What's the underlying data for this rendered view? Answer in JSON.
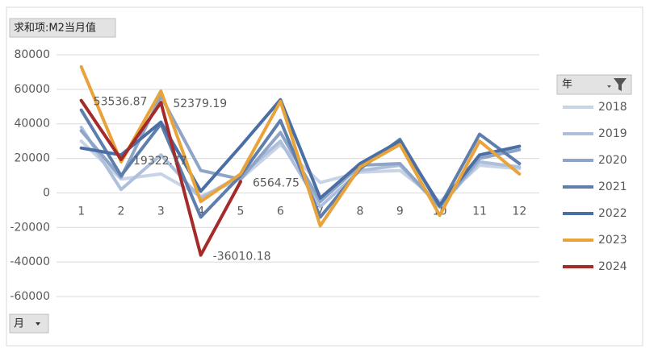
{
  "field_buttons": {
    "value_field": "求和项:M2当月值",
    "legend_field": "年",
    "axis_field": "月"
  },
  "chart_data": {
    "type": "line",
    "categories": [
      "1",
      "2",
      "3",
      "4",
      "5",
      "6",
      "7",
      "8",
      "9",
      "10",
      "11",
      "12"
    ],
    "ylim": [
      -60000,
      80000
    ],
    "yticks": [
      -60000,
      -40000,
      -20000,
      0,
      20000,
      40000,
      60000,
      80000
    ],
    "grid": true,
    "legend": "right",
    "series": [
      {
        "name": "2018",
        "color": "#c9d3e6",
        "values": [
          30000,
          8000,
          11000,
          -2000,
          8000,
          28000,
          6000,
          12000,
          13000,
          -5000,
          16000,
          14000
        ]
      },
      {
        "name": "2019",
        "color": "#aebfdc",
        "values": [
          38000,
          2000,
          22000,
          -3000,
          10000,
          30000,
          -8000,
          13000,
          16000,
          -8000,
          18000,
          15000
        ]
      },
      {
        "name": "2020",
        "color": "#8ea5c8",
        "values": [
          36000,
          9000,
          56000,
          13000,
          8000,
          35000,
          -5000,
          16000,
          17000,
          -8000,
          20000,
          25000
        ]
      },
      {
        "name": "2021",
        "color": "#5e7fae",
        "values": [
          48000,
          10000,
          40000,
          -14000,
          10000,
          42000,
          -14000,
          14000,
          31000,
          -8000,
          34000,
          17000
        ]
      },
      {
        "name": "2022",
        "color": "#4a6fa5",
        "values": [
          26000,
          22000,
          41000,
          1000,
          27000,
          54000,
          -3000,
          17000,
          30000,
          -7000,
          22000,
          27000
        ]
      },
      {
        "name": "2023",
        "color": "#e8a33a",
        "values": [
          73000,
          18000,
          59000,
          -5000,
          11000,
          53000,
          -19000,
          15000,
          28000,
          -13000,
          30000,
          11000
        ]
      },
      {
        "name": "2024",
        "color": "#a52a2a",
        "values": [
          53536.87,
          19322.77,
          52379.19,
          -36010.18,
          6564.75,
          null,
          null,
          null,
          null,
          null,
          null,
          null
        ],
        "show_labels": true
      }
    ]
  }
}
